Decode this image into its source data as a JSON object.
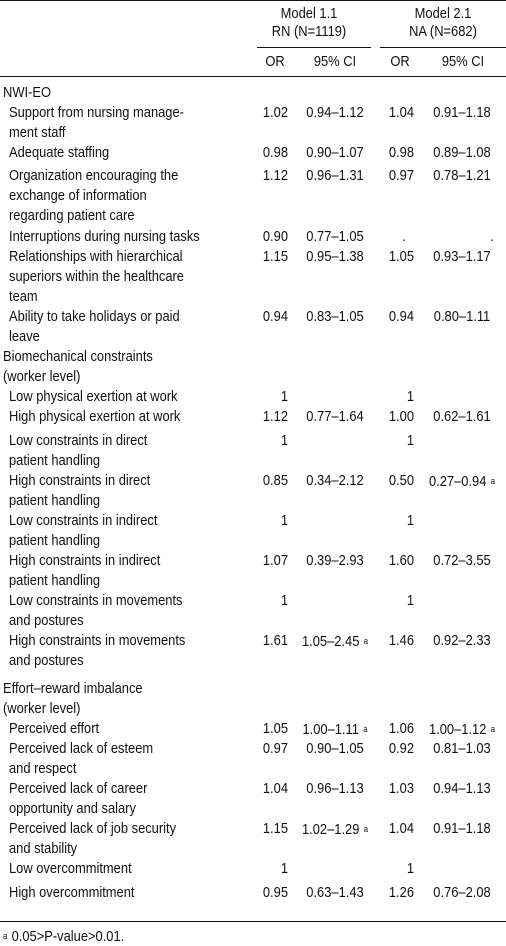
{
  "header": {
    "model1_title": "Model 1.1",
    "model1_sub": "RN (N=1119)",
    "model2_title": "Model 2.1",
    "model2_sub": "NA (N=682)",
    "or1": "OR",
    "ci1": "95% CI",
    "or2": "OR",
    "ci2": "95% CI"
  },
  "footnote": {
    "mark": "a",
    "text": "0.05>P-value>0.01."
  },
  "rows": [
    {
      "kind": "section",
      "lines": [
        "NWI-EO"
      ]
    },
    {
      "kind": "item",
      "lines": [
        "Support from nursing manage-",
        "ment staff"
      ],
      "or1": "1.02",
      "ci1": "0.94–1.12",
      "or2": "1.04",
      "ci2": "0.91–1.18"
    },
    {
      "kind": "item",
      "lines": [
        "Adequate staffing"
      ],
      "or1": "0.98",
      "ci1": "0.90–1.07",
      "or2": "0.98",
      "ci2": "0.89–1.08"
    },
    {
      "kind": "item",
      "lines": [
        "Organization encouraging the",
        "exchange of information",
        "regarding patient care"
      ],
      "or1": "1.12",
      "ci1": "0.96–1.31",
      "or2": "0.97",
      "ci2": "0.78–1.21"
    },
    {
      "kind": "item",
      "lines": [
        "Interruptions during nursing tasks"
      ],
      "or1": "0.90",
      "ci1": "0.77–1.05",
      "or2": ".",
      "ci2": "."
    },
    {
      "kind": "item",
      "lines": [
        "Relationships with hierarchical",
        "superiors within the healthcare",
        "team"
      ],
      "or1": "1.15",
      "ci1": "0.95–1.38",
      "or2": "1.05",
      "ci2": "0.93–1.17"
    },
    {
      "kind": "item",
      "lines": [
        "Ability to take holidays or paid",
        "leave"
      ],
      "or1": "0.94",
      "ci1": "0.83–1.05",
      "or2": "0.94",
      "ci2": "0.80–1.11"
    },
    {
      "kind": "section",
      "lines": [
        "Biomechanical constraints",
        "(worker level)"
      ]
    },
    {
      "kind": "item",
      "lines": [
        "Low physical exertion at work"
      ],
      "or1": "1",
      "ci1": "",
      "or2": "1",
      "ci2": ""
    },
    {
      "kind": "item",
      "lines": [
        "High physical exertion at work"
      ],
      "or1": "1.12",
      "ci1": "0.77–1.64",
      "or2": "1.00",
      "ci2": "0.62–1.61"
    },
    {
      "kind": "item",
      "lines": [
        "Low constraints in direct",
        "patient handling"
      ],
      "or1": "1",
      "ci1": "",
      "or2": "1",
      "ci2": ""
    },
    {
      "kind": "item",
      "lines": [
        "High constraints in direct",
        "patient handling"
      ],
      "or1": "0.85",
      "ci1": "0.34–2.12",
      "or2": "0.50",
      "ci2": "0.27–0.94",
      "ci2_mark": "a"
    },
    {
      "kind": "item",
      "lines": [
        "Low constraints in indirect",
        "patient handling"
      ],
      "or1": "1",
      "ci1": "",
      "or2": "1",
      "ci2": ""
    },
    {
      "kind": "item",
      "lines": [
        "High constraints in indirect",
        "patient handling"
      ],
      "or1": "1.07",
      "ci1": "0.39–2.93",
      "or2": "1.60",
      "ci2": "0.72–3.55"
    },
    {
      "kind": "item",
      "lines": [
        "Low constraints in movements",
        "and postures"
      ],
      "or1": "1",
      "ci1": "",
      "or2": "1",
      "ci2": ""
    },
    {
      "kind": "item",
      "lines": [
        "High constraints in movements",
        "and postures"
      ],
      "or1": "1.61",
      "ci1": "1.05–2.45",
      "ci1_mark": "a",
      "or2": "1.46",
      "ci2": "0.92–2.33"
    },
    {
      "kind": "section",
      "lines": [
        "Effort–reward imbalance",
        "(worker level)"
      ]
    },
    {
      "kind": "item",
      "lines": [
        "Perceived effort"
      ],
      "or1": "1.05",
      "ci1": "1.00–1.11",
      "ci1_mark": "a",
      "or2": "1.06",
      "ci2": "1.00–1.12",
      "ci2_mark": "a"
    },
    {
      "kind": "item",
      "lines": [
        "Perceived lack of esteem",
        "and respect"
      ],
      "or1": "0.97",
      "ci1": "0.90–1.05",
      "or2": "0.92",
      "ci2": "0.81–1.03"
    },
    {
      "kind": "item",
      "lines": [
        "Perceived lack of career",
        "opportunity and salary"
      ],
      "or1": "1.04",
      "ci1": "0.96–1.13",
      "or2": "1.03",
      "ci2": "0.94–1.13"
    },
    {
      "kind": "item",
      "lines": [
        "Perceived lack of job security",
        "and stability"
      ],
      "or1": "1.15",
      "ci1": "1.02–1.29",
      "ci1_mark": "a",
      "or2": "1.04",
      "ci2": "0.91–1.18"
    },
    {
      "kind": "item",
      "lines": [
        "Low overcommitment"
      ],
      "or1": "1",
      "ci1": "",
      "or2": "1",
      "ci2": ""
    },
    {
      "kind": "item",
      "lines": [
        "High overcommitment"
      ],
      "or1": "0.95",
      "ci1": "0.63–1.43",
      "or2": "1.26",
      "ci2": "0.76–2.08"
    }
  ]
}
